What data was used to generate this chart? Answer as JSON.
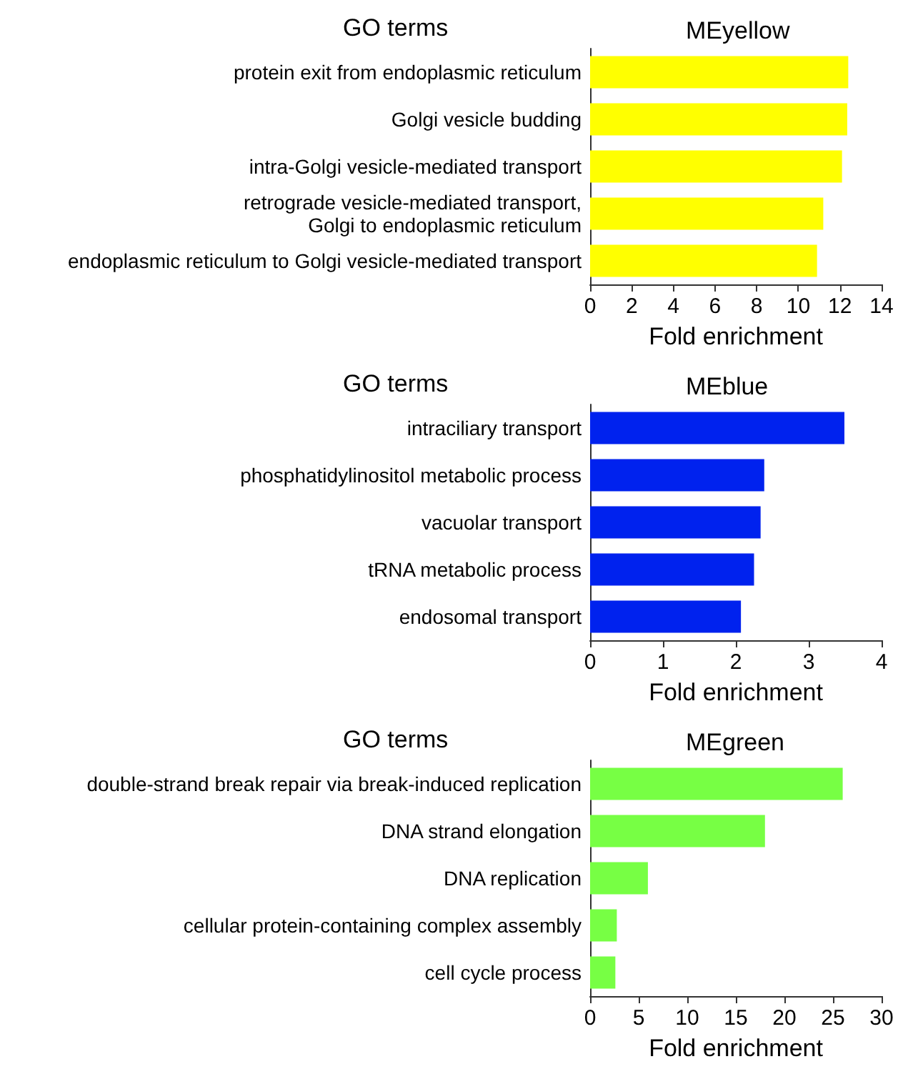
{
  "chart_data": [
    {
      "type": "bar",
      "orientation": "horizontal",
      "title": "MEyellow",
      "ylabel": "GO terms",
      "xlabel": "Fold enrichment",
      "categories": [
        "protein exit from endoplasmic reticulum",
        "Golgi vesicle budding",
        "intra-Golgi vesicle-mediated transport",
        "retrograde vesicle-mediated transport,\nGolgi to endoplasmic reticulum",
        "endoplasmic reticulum to Golgi vesicle-mediated transport"
      ],
      "values": [
        12.4,
        12.35,
        12.1,
        11.2,
        10.9
      ],
      "color": "#ffff00",
      "xlim": [
        0,
        14
      ],
      "xticks": [
        0,
        2,
        4,
        6,
        8,
        10,
        12,
        14
      ],
      "grid": false
    },
    {
      "type": "bar",
      "orientation": "horizontal",
      "title": "MEblue",
      "ylabel": "GO terms",
      "xlabel": "Fold enrichment",
      "categories": [
        "intraciliary transport",
        "phosphatidylinositol metabolic process",
        "vacuolar transport",
        "tRNA metabolic process",
        "endosomal transport"
      ],
      "values": [
        3.49,
        2.39,
        2.34,
        2.25,
        2.07
      ],
      "color": "#0022ee",
      "xlim": [
        0,
        4
      ],
      "xticks": [
        0,
        1,
        2,
        3,
        4
      ],
      "grid": false
    },
    {
      "type": "bar",
      "orientation": "horizontal",
      "title": "MEgreen",
      "ylabel": "GO terms",
      "xlabel": "Fold enrichment",
      "categories": [
        "double-strand break repair via break-induced replication",
        "DNA strand elongation",
        "DNA replication",
        "cellular protein-containing complex assembly",
        "cell cycle process"
      ],
      "values": [
        26.0,
        18.0,
        5.95,
        2.75,
        2.6
      ],
      "color": "#77ff44",
      "xlim": [
        0,
        30
      ],
      "xticks": [
        0,
        5,
        10,
        15,
        20,
        25,
        30
      ],
      "grid": false
    }
  ]
}
